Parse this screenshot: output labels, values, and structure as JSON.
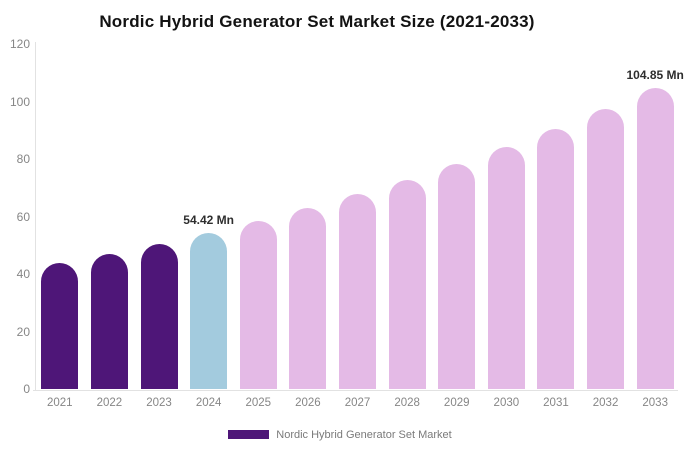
{
  "chart_data": {
    "type": "bar",
    "title": "Nordic Hybrid Generator Set Market Size (2021-2033)",
    "unit": "Mn",
    "categories": [
      "2021",
      "2022",
      "2023",
      "2024",
      "2025",
      "2026",
      "2027",
      "2028",
      "2029",
      "2030",
      "2031",
      "2032",
      "2033"
    ],
    "values": [
      43.7,
      47.0,
      50.6,
      54.42,
      58.5,
      62.9,
      67.7,
      72.8,
      78.3,
      84.2,
      90.6,
      97.4,
      104.85
    ],
    "bar_roles": [
      "historical",
      "historical",
      "historical",
      "base_year",
      "forecast",
      "forecast",
      "forecast",
      "forecast",
      "forecast",
      "forecast",
      "forecast",
      "forecast",
      "forecast"
    ],
    "role_colors": {
      "historical": "#4E1678",
      "base_year": "#A3CBDE",
      "forecast": "#E4BAE6"
    },
    "annotations": [
      {
        "category": "2024",
        "text": "54.42 Mn"
      },
      {
        "category": "2033",
        "text": "104.85 Mn"
      }
    ],
    "ylim": [
      0,
      120
    ],
    "yticks": [
      0,
      20,
      40,
      60,
      80,
      100,
      120
    ],
    "grid": false,
    "xlabel": "",
    "ylabel": "",
    "legend_position": "bottom",
    "legend": [
      {
        "label": "Nordic Hybrid Generator Set Market",
        "color": "#4E1678"
      }
    ],
    "colors": {
      "axis_line": "#E2E2E2",
      "tick_label": "#868686",
      "data_label": "#2E2E2E",
      "title": "#121212",
      "legend_label": "#7A7A7A",
      "background": "#FFFFFF"
    }
  }
}
